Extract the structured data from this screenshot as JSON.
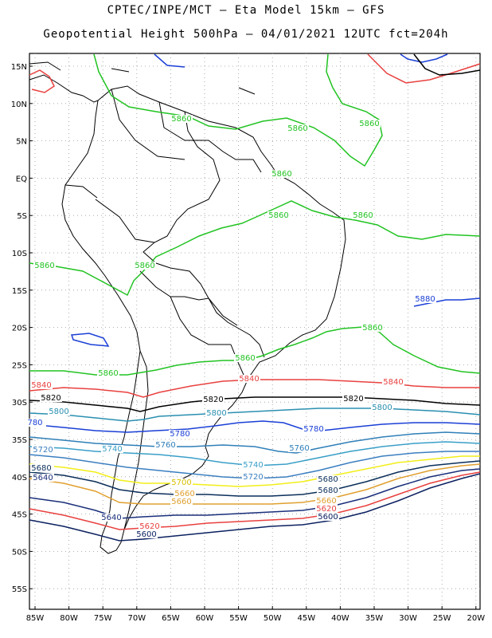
{
  "header": {
    "line1": "CPTEC/INPE/MCT –  Eta Model 15km – GFS",
    "line2": "Geopotential Height 500hPa – 04/01/2021 12UTC fct=204h"
  },
  "axes": {
    "lat_labels": [
      "15N",
      "10N",
      "5N",
      "EQ",
      "5S",
      "10S",
      "15S",
      "20S",
      "25S",
      "30S",
      "35S",
      "40S",
      "45S",
      "50S",
      "55S"
    ],
    "lon_labels": [
      "85W",
      "80W",
      "75W",
      "70W",
      "65W",
      "60W",
      "55W",
      "50W",
      "45W",
      "40W",
      "35W",
      "30W",
      "25W",
      "20W"
    ]
  },
  "contours": [
    {
      "level": "5880",
      "color": "#1a3fd6"
    },
    {
      "level": "5860",
      "color": "#22c322"
    },
    {
      "level": "5840",
      "color": "#e8413f"
    },
    {
      "level": "5820",
      "color": "#000000"
    },
    {
      "level": "5800",
      "color": "#2a8fb0"
    },
    {
      "level": "5780",
      "color": "#1a3fd6"
    },
    {
      "level": "5760",
      "color": "#2f7fb8"
    },
    {
      "level": "5740",
      "color": "#3a9fc8"
    },
    {
      "level": "5720",
      "color": "#3b7fc0"
    },
    {
      "level": "5700",
      "color": "#f2ee1a"
    },
    {
      "level": "5680",
      "color": "#0b2f5a"
    },
    {
      "level": "5660",
      "color": "#e0a030"
    },
    {
      "level": "5640",
      "color": "#1a2f7a"
    },
    {
      "level": "5620",
      "color": "#e8413f"
    },
    {
      "level": "5600",
      "color": "#0b2060"
    }
  ],
  "contour_labels": [
    {
      "text": "5860",
      "color": "#22c322"
    },
    {
      "text": "5860",
      "color": "#22c322"
    },
    {
      "text": "5860",
      "color": "#22c322"
    },
    {
      "text": "5860",
      "color": "#22c322"
    },
    {
      "text": "5860",
      "color": "#22c322"
    },
    {
      "text": "5860",
      "color": "#22c322"
    },
    {
      "text": "5860",
      "color": "#22c322"
    },
    {
      "text": "5860",
      "color": "#22c322"
    },
    {
      "text": "5860",
      "color": "#22c322"
    },
    {
      "text": "5860",
      "color": "#22c322"
    },
    {
      "text": "5860",
      "color": "#22c322"
    },
    {
      "text": "5880",
      "color": "#1a3fd6"
    },
    {
      "text": "5840",
      "color": "#e8413f"
    },
    {
      "text": "5840",
      "color": "#e8413f"
    },
    {
      "text": "5840",
      "color": "#e8413f"
    },
    {
      "text": "5820",
      "color": "#000000"
    },
    {
      "text": "5820",
      "color": "#000000"
    },
    {
      "text": "5820",
      "color": "#000000"
    },
    {
      "text": "5800",
      "color": "#2a8fb0"
    },
    {
      "text": "5800",
      "color": "#2a8fb0"
    },
    {
      "text": "5800",
      "color": "#2a8fb0"
    },
    {
      "text": "780",
      "color": "#1a3fd6"
    },
    {
      "text": "5780",
      "color": "#1a3fd6"
    },
    {
      "text": "5780",
      "color": "#1a3fd6"
    },
    {
      "text": "5760",
      "color": "#2f7fb8"
    },
    {
      "text": "5760",
      "color": "#2f7fb8"
    },
    {
      "text": "5720",
      "color": "#3b7fc0"
    },
    {
      "text": "5740",
      "color": "#3a9fc8"
    },
    {
      "text": "5740",
      "color": "#3a9fc8"
    },
    {
      "text": "5720",
      "color": "#3b7fc0"
    },
    {
      "text": "5700",
      "color": "#d8c000"
    },
    {
      "text": "5700",
      "color": "#d8c000"
    },
    {
      "text": "5680",
      "color": "#0b2f5a"
    },
    {
      "text": "5660",
      "color": "#e0a030"
    },
    {
      "text": "5680",
      "color": "#0b2f5a"
    },
    {
      "text": "5680",
      "color": "#0b2f5a"
    },
    {
      "text": "5660",
      "color": "#e0a030"
    },
    {
      "text": "5660",
      "color": "#e0a030"
    },
    {
      "text": "5640",
      "color": "#1a2f7a"
    },
    {
      "text": "5640",
      "color": "#1a2f7a"
    },
    {
      "text": "5620",
      "color": "#e8413f"
    },
    {
      "text": "5620",
      "color": "#e8413f"
    },
    {
      "text": "5600",
      "color": "#0b2060"
    },
    {
      "text": "5600",
      "color": "#0b2060"
    }
  ]
}
